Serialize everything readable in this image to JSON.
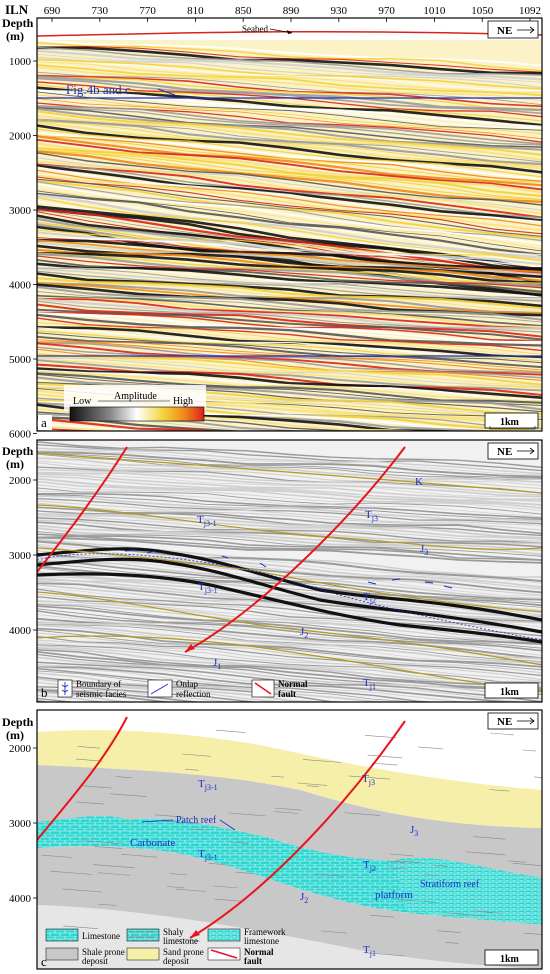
{
  "colors": {
    "accent_blue": "#1a2ec8",
    "fault_red": "#e8151b",
    "horizon_olive": "#b49a1c",
    "limestone_cyan": "#2fd6d0",
    "shale_grey": "#c8c8c8",
    "sand_yellow": "#f6efaa"
  },
  "panel_a": {
    "letter": "a",
    "il_label": "ILN",
    "il_ticks": [
      "690",
      "730",
      "770",
      "810",
      "850",
      "890",
      "930",
      "970",
      "1010",
      "1050",
      "1092"
    ],
    "depth_label": "Depth",
    "depth_unit": "(m)",
    "depth_ticks": [
      "1000",
      "2000",
      "3000",
      "4000",
      "5000",
      "6000"
    ],
    "depth_range": [
      600,
      6000
    ],
    "seabed": "Seabed",
    "fig_ref": "Fig.4b and c",
    "orientation": "NE",
    "scale": "1km",
    "amplitude_title": "Amplitude",
    "amplitude_low": "Low",
    "amplitude_high": "High"
  },
  "panel_b": {
    "letter": "b",
    "depth_label": "Depth",
    "depth_unit": "(m)",
    "depth_ticks": [
      "2000",
      "3000",
      "4000"
    ],
    "orientation": "NE",
    "scale": "1km",
    "labels": {
      "K": "K",
      "Tj3": "T",
      "Tj3_sub": "j3",
      "Tj31": "T",
      "Tj31_sub": "j3-1",
      "J3": "J",
      "J3_sub": "3",
      "Tj11": "T",
      "Tj11_sub": "j3-1",
      "Tj2": "T",
      "Tj2_sub": "j2",
      "J2": "J",
      "J2_sub": "2",
      "J1": "J",
      "J1_sub": "1",
      "Tj1": "T",
      "Tj1_sub": "j1"
    },
    "legend": {
      "boundary": "Boundary of seismic facies",
      "boundary_l1": "Boundary of",
      "boundary_l2": "seismic facies",
      "onlap_l1": "Onlap",
      "onlap_l2": "reflection",
      "fault_l1": "Normal",
      "fault_l2": "fault"
    }
  },
  "panel_c": {
    "letter": "c",
    "depth_label": "Depth",
    "depth_unit": "(m)",
    "depth_ticks": [
      "2000",
      "3000",
      "4000"
    ],
    "orientation": "NE",
    "scale": "1km",
    "annotations": {
      "patch_reef": "Patch reef",
      "carbonate": "Carbonate",
      "platform": "platform",
      "stratiform_reef": "Stratiform reef",
      "Tj3": "T",
      "Tj3_sub": "j3",
      "Tj31": "T",
      "Tj31_sub": "j3-1",
      "Tj11": "T",
      "Tj11_sub": "j3-1",
      "Tj2": "T",
      "Tj2_sub": "j2",
      "J3": "J",
      "J3_sub": "3",
      "J2": "J",
      "J2_sub": "2",
      "Tj1": "T",
      "Tj1_sub": "j1"
    },
    "legend": {
      "limestone": "Limestone",
      "shaly_l1": "Shaly",
      "shaly_l2": "limestone",
      "framework_l1": "Framework",
      "framework_l2": "limestone",
      "shale_l1": "Shale prone",
      "shale_l2": "deposit",
      "sand_l1": "Sand prone",
      "sand_l2": "deposit",
      "fault_l1": "Normal",
      "fault_l2": "fault"
    }
  }
}
